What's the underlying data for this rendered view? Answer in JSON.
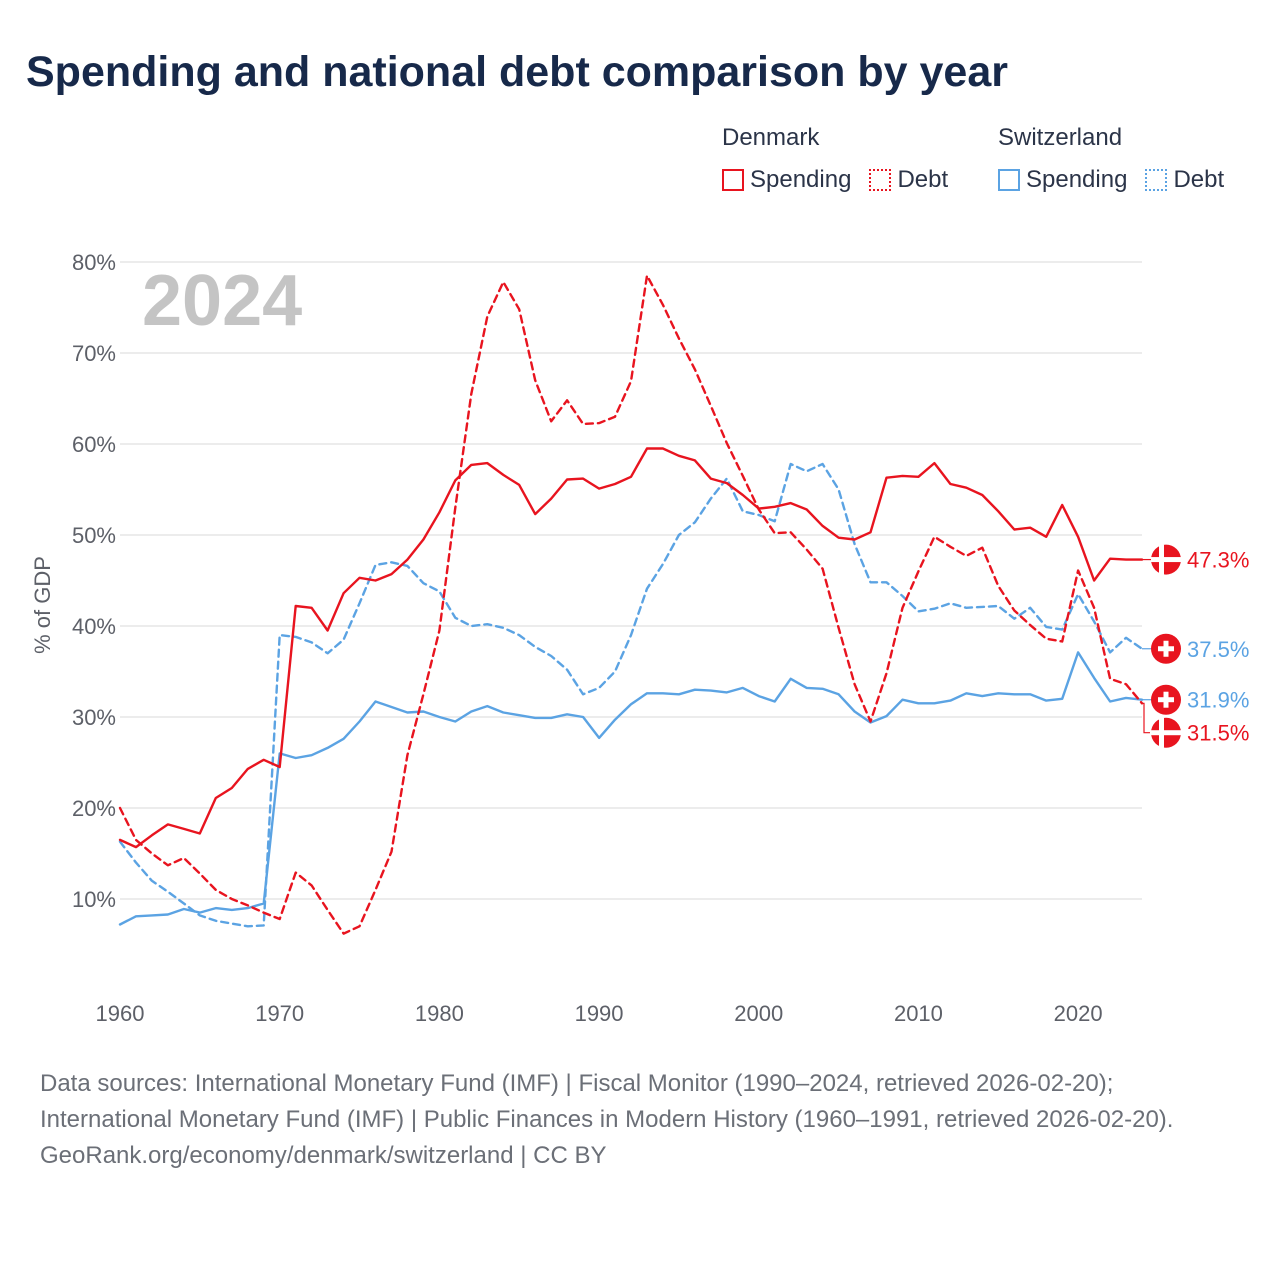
{
  "title": "Spending and national debt comparison by year",
  "legend": [
    {
      "country": "Denmark",
      "items": [
        {
          "label": "Spending",
          "style": "solid",
          "color": "#e8141f"
        },
        {
          "label": "Debt",
          "style": "dotted",
          "color": "#e8141f"
        }
      ]
    },
    {
      "country": "Switzerland",
      "items": [
        {
          "label": "Spending",
          "style": "solid",
          "color": "#5ba3e3"
        },
        {
          "label": "Debt",
          "style": "dotted",
          "color": "#5ba3e3"
        }
      ]
    }
  ],
  "footer": {
    "sources": "Data sources: International Monetary Fund (IMF) | Fiscal Monitor (1990–2024, retrieved 2026-02-20); International Monetary Fund (IMF) | Public Finances in Modern History (1960–1991, retrieved 2026-02-20).",
    "credit": "GeoRank.org/economy/denmark/switzerland | CC BY"
  },
  "chart_data": {
    "type": "line",
    "year_label": "2024",
    "ylabel": "% of GDP",
    "xlabel": "",
    "xlim": [
      1960,
      2024
    ],
    "ylim": [
      0,
      80
    ],
    "x_ticks": [
      1960,
      1970,
      1980,
      1990,
      2000,
      2010,
      2020
    ],
    "y_ticks": [
      10,
      20,
      30,
      40,
      50,
      60,
      70,
      80
    ],
    "y_tick_labels": [
      "10%",
      "20%",
      "30%",
      "40%",
      "50%",
      "60%",
      "70%",
      "80%"
    ],
    "grid": true,
    "colors": {
      "denmark": "#e8141f",
      "switzerland": "#5ba3e3"
    },
    "x": [
      1960,
      1961,
      1962,
      1963,
      1964,
      1965,
      1966,
      1967,
      1968,
      1969,
      1970,
      1971,
      1972,
      1973,
      1974,
      1975,
      1976,
      1977,
      1978,
      1979,
      1980,
      1981,
      1982,
      1983,
      1984,
      1985,
      1986,
      1987,
      1988,
      1989,
      1990,
      1991,
      1992,
      1993,
      1994,
      1995,
      1996,
      1997,
      1998,
      1999,
      2000,
      2001,
      2002,
      2003,
      2004,
      2005,
      2006,
      2007,
      2008,
      2009,
      2010,
      2011,
      2012,
      2013,
      2014,
      2015,
      2016,
      2017,
      2018,
      2019,
      2020,
      2021,
      2022,
      2023,
      2024
    ],
    "series": [
      {
        "name": "Denmark Spending",
        "country": "denmark",
        "style": "solid",
        "end_label": "47.3%",
        "values": [
          16.5,
          15.7,
          17.0,
          18.2,
          17.7,
          17.2,
          21.1,
          22.2,
          24.3,
          25.3,
          24.5,
          42.2,
          42.0,
          39.5,
          43.6,
          45.3,
          45.0,
          45.7,
          47.3,
          49.5,
          52.5,
          56.0,
          57.7,
          57.9,
          56.6,
          55.5,
          52.3,
          54.0,
          56.1,
          56.2,
          55.1,
          55.6,
          56.4,
          59.5,
          59.5,
          58.7,
          58.2,
          56.2,
          55.7,
          54.4,
          52.9,
          53.1,
          53.5,
          52.8,
          51.0,
          49.7,
          49.5,
          50.3,
          56.3,
          56.5,
          56.4,
          57.9,
          55.6,
          55.2,
          54.4,
          52.6,
          50.6,
          50.8,
          49.8,
          53.3,
          49.8,
          45.0,
          47.4,
          47.3,
          47.3
        ]
      },
      {
        "name": "Denmark Debt",
        "country": "denmark",
        "style": "dotted",
        "end_label": "31.5%",
        "values": [
          20.0,
          16.5,
          15.0,
          13.7,
          14.5,
          12.8,
          11.0,
          10.0,
          9.3,
          8.5,
          7.8,
          12.9,
          11.5,
          8.8,
          6.2,
          7.0,
          11.0,
          15.2,
          25.8,
          32.5,
          39.5,
          53.0,
          65.5,
          74.0,
          77.8,
          74.8,
          67.0,
          62.5,
          64.8,
          62.2,
          62.3,
          63.0,
          66.9,
          78.5,
          75.3,
          71.6,
          68.2,
          64.2,
          60.1,
          56.5,
          52.8,
          50.2,
          50.3,
          48.4,
          46.3,
          39.8,
          33.6,
          29.5,
          34.8,
          42.0,
          46.0,
          49.8,
          48.7,
          47.7,
          48.6,
          44.4,
          41.7,
          40.1,
          38.6,
          38.3,
          46.1,
          42.0,
          34.2,
          33.6,
          31.5
        ]
      },
      {
        "name": "Switzerland Spending",
        "country": "switzerland",
        "style": "solid",
        "end_label": "31.9%",
        "values": [
          7.2,
          8.1,
          8.2,
          8.3,
          8.9,
          8.5,
          9.0,
          8.8,
          9.0,
          9.5,
          26.0,
          25.5,
          25.8,
          26.6,
          27.6,
          29.5,
          31.7,
          31.1,
          30.5,
          30.6,
          30.0,
          29.5,
          30.6,
          31.2,
          30.5,
          30.2,
          29.9,
          29.9,
          30.3,
          30.0,
          27.7,
          29.7,
          31.4,
          32.6,
          32.6,
          32.5,
          33.0,
          32.9,
          32.7,
          33.2,
          32.3,
          31.7,
          34.2,
          33.2,
          33.1,
          32.5,
          30.6,
          29.4,
          30.1,
          31.9,
          31.5,
          31.5,
          31.8,
          32.6,
          32.3,
          32.6,
          32.5,
          32.5,
          31.8,
          32.0,
          37.1,
          34.3,
          31.7,
          32.1,
          31.9
        ]
      },
      {
        "name": "Switzerland Debt",
        "country": "switzerland",
        "style": "dotted",
        "end_label": "37.5%",
        "values": [
          16.3,
          14.0,
          12.0,
          10.8,
          9.5,
          8.2,
          7.6,
          7.3,
          7.0,
          7.1,
          39.0,
          38.8,
          38.2,
          37.0,
          38.5,
          42.5,
          46.7,
          47.0,
          46.6,
          44.7,
          43.8,
          40.9,
          40.0,
          40.2,
          39.8,
          39.0,
          37.7,
          36.7,
          35.2,
          32.5,
          33.2,
          35.0,
          39.0,
          44.1,
          46.8,
          50.0,
          51.4,
          54.0,
          56.2,
          52.6,
          52.2,
          51.5,
          57.8,
          57.0,
          57.8,
          55.0,
          49.0,
          44.8,
          44.8,
          43.3,
          41.6,
          41.9,
          42.5,
          42.0,
          42.1,
          42.2,
          40.8,
          42.0,
          39.9,
          39.6,
          43.5,
          40.5,
          37.1,
          38.7,
          37.5
        ]
      }
    ]
  }
}
